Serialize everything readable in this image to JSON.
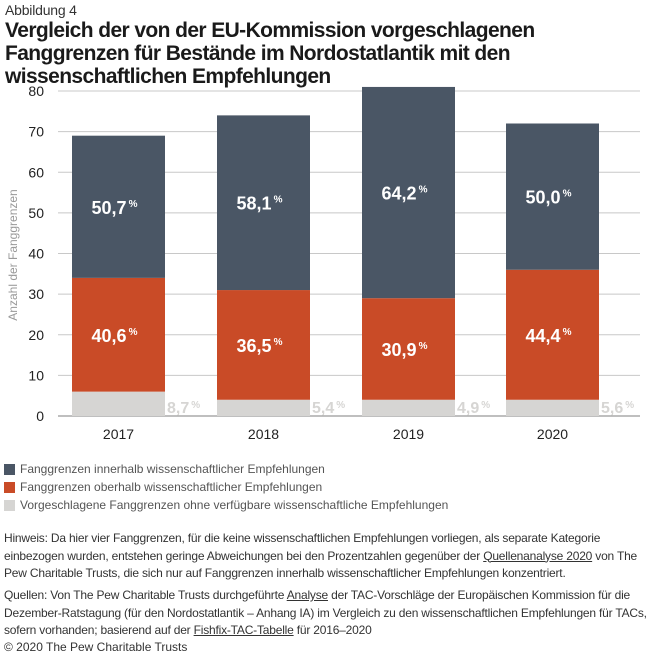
{
  "figure_label": "Abbildung 4",
  "title": "Vergleich der von der EU-Kommission vorgeschlagenen Fanggrenzen für Bestände im Nordostatlantik mit den wissenschaftlichen Empfehlungen",
  "chart_data": {
    "type": "bar",
    "stacked": true,
    "title": "Vergleich der von der EU-Kommission vorgeschlagenen Fanggrenzen für Bestände im Nordostatlantik mit den wissenschaftlichen Empfehlungen",
    "xlabel": "",
    "ylabel": "Anzahl der Fanggrenzen",
    "ylim": [
      0,
      80
    ],
    "yticks": [
      0,
      10,
      20,
      30,
      40,
      50,
      60,
      70,
      80
    ],
    "grid": true,
    "categories": [
      "2017",
      "2018",
      "2019",
      "2020"
    ],
    "series": [
      {
        "name": "Vorgeschlagene Fanggrenzen ohne verfügbare wissenschaftliche Empfehlungen",
        "color": "#d6d5d3",
        "values": [
          6,
          4,
          4,
          4
        ],
        "labels": [
          "8,7",
          "5,4",
          "4,9",
          "5,6"
        ]
      },
      {
        "name": "Fanggrenzen oberhalb wissenschaftlicher Empfehlungen",
        "color": "#c94b27",
        "values": [
          28,
          27,
          25,
          32
        ],
        "labels": [
          "40,6",
          "36,5",
          "30,9",
          "44,4"
        ]
      },
      {
        "name": "Fanggrenzen innerhalb wissenschaftlicher Empfehlungen",
        "color": "#4a5665",
        "values": [
          35,
          43,
          52,
          36
        ],
        "labels": [
          "50,7",
          "58,1",
          "64,2",
          "50,0"
        ]
      }
    ],
    "totals": [
      69,
      74,
      81,
      72
    ],
    "percent_sign": "%",
    "legend_position": "bottom-left"
  },
  "legend": [
    {
      "label": "Fanggrenzen innerhalb wissenschaftlicher Empfehlungen",
      "color": "#4a5665"
    },
    {
      "label": "Fanggrenzen oberhalb wissenschaftlicher Empfehlungen",
      "color": "#c94b27"
    },
    {
      "label": "Vorgeschlagene Fanggrenzen ohne verfügbare wissenschaftliche Empfehlungen",
      "color": "#d6d5d3"
    }
  ],
  "note": {
    "part1": "Hinweis: Da hier vier Fanggrenzen, für die keine wissenschaftlichen Empfehlungen vorliegen, als separate Kategorie einbezogen wurden, entstehen geringe Abweichungen bei den Prozentzahlen gegenüber der ",
    "link": "Quellenanalyse 2020",
    "part2": " von The Pew Charitable Trusts, die sich nur auf Fanggrenzen innerhalb wissenschaftlicher Empfehlungen konzentriert."
  },
  "sources": {
    "part1": "Quellen: Von The Pew Charitable Trusts durchgeführte ",
    "link1": "Analyse",
    "part2": " der TAC-Vorschläge der Europäischen Kommission für die Dezember-Ratstagung (für den Nordostatlantik – Anhang IA) im Vergleich zu den wissenschaftlichen Empfehlungen für TACs, sofern vorhanden; basierend auf der ",
    "link2": "Fishfix-TAC-Tabelle",
    "part3": " für 2016–2020"
  },
  "copyright": "© 2020 The Pew Charitable Trusts"
}
